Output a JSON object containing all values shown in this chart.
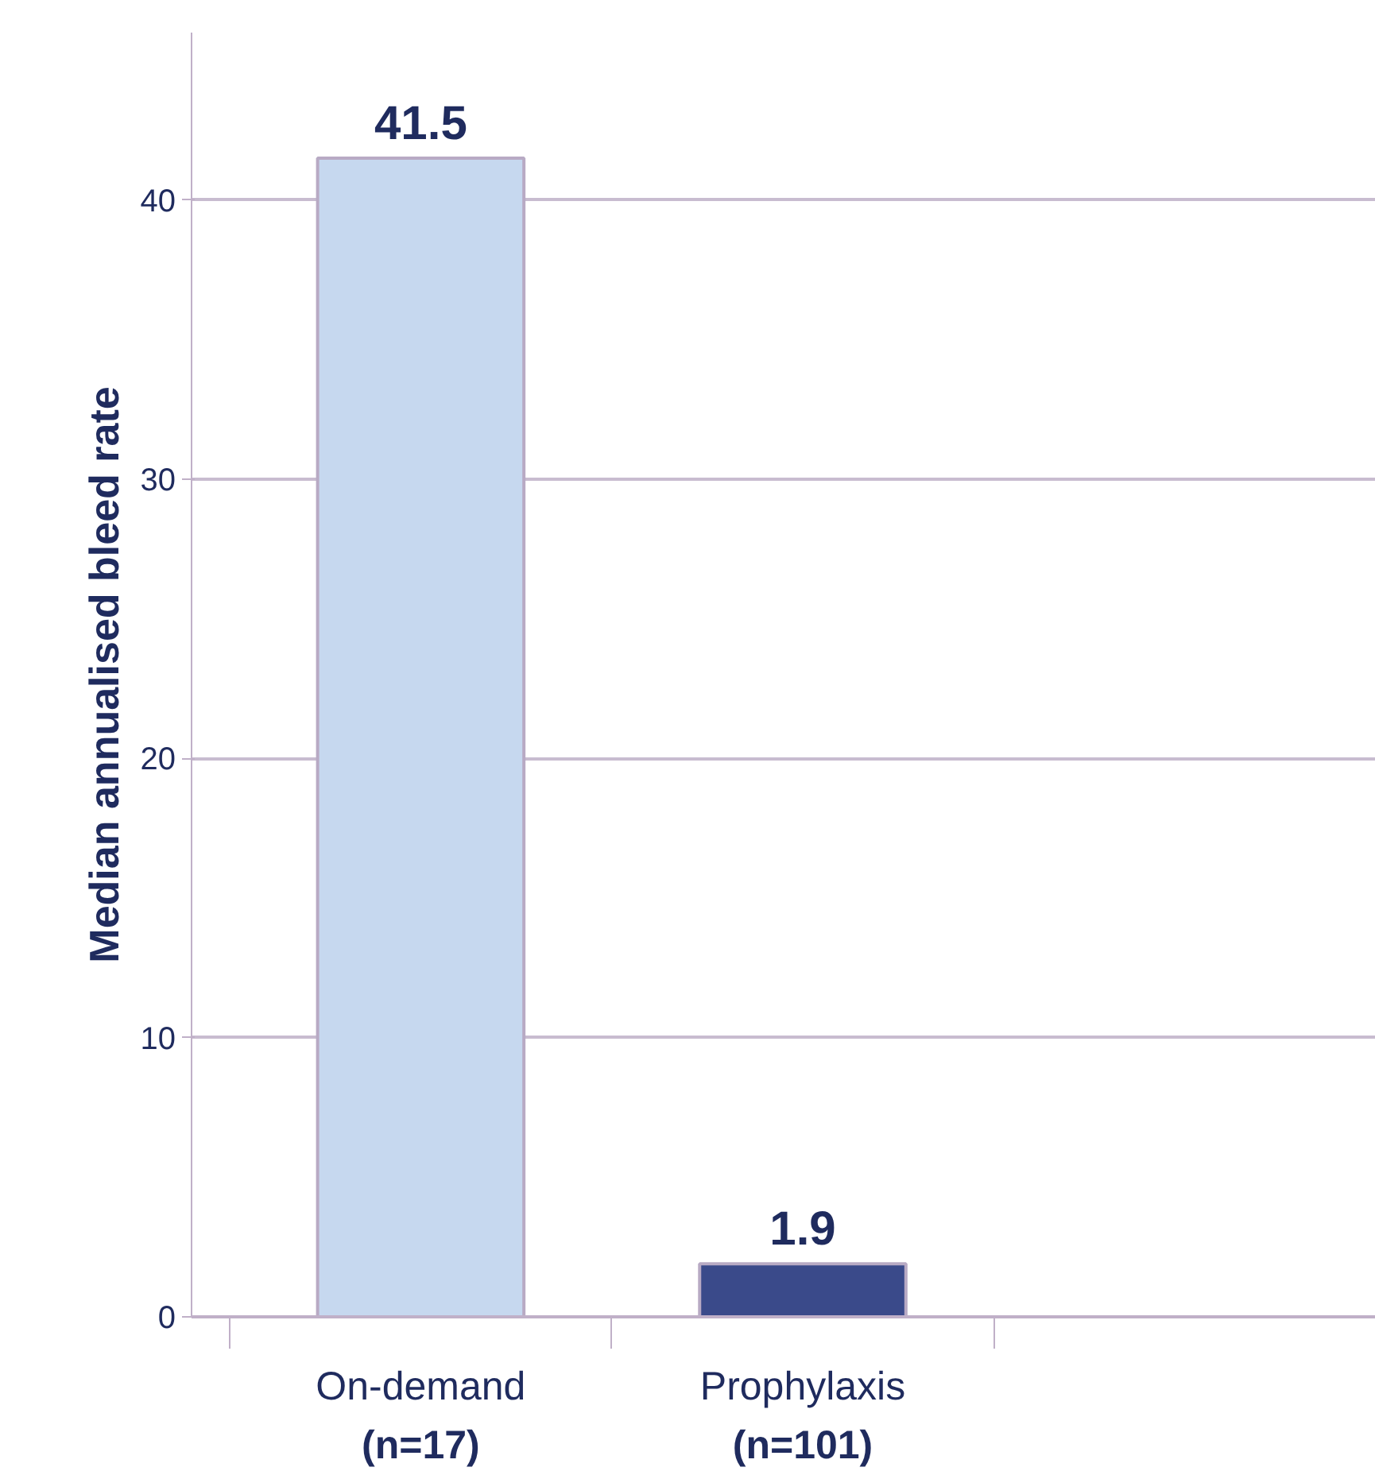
{
  "chart_data": {
    "type": "bar",
    "ylabel": "Median annualised bleed rate",
    "categories": [
      "On-demand\n(n=17)",
      "Prophylaxis\n(n=101)",
      null
    ],
    "values": [
      41.5,
      1.9,
      null
    ],
    "colors": [
      "#c6d8ef",
      "#3a4a8a",
      "#3a4a8a"
    ],
    "ylim": [
      0,
      46
    ],
    "yticks": [
      0,
      10,
      20,
      30,
      40
    ],
    "grid": "y",
    "data_labels": true
  }
}
